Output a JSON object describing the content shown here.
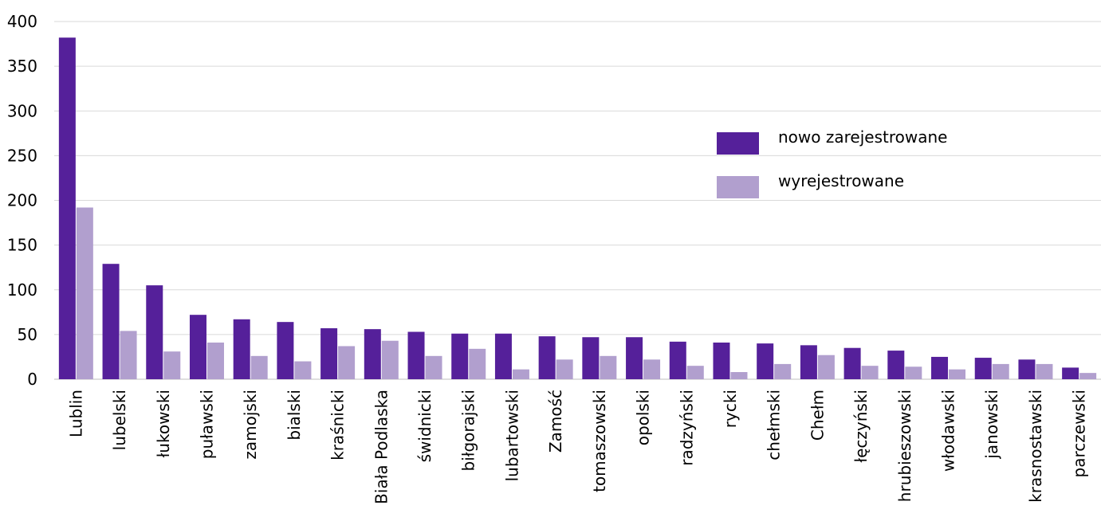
{
  "chart_data": {
    "type": "bar",
    "categories": [
      "Lublin",
      "lubelski",
      "łukowski",
      "puławski",
      "zamojski",
      "bialski",
      "kraśnicki",
      "Biała Podlaska",
      "świdnicki",
      "biłgorajski",
      "lubartowski",
      "Zamość",
      "tomaszowski",
      "opolski",
      "radzyński",
      "rycki",
      "chełmski",
      "Chełm",
      "łęczyński",
      "hrubieszowski",
      "włodawski",
      "janowski",
      "krasnostawski",
      "parczewski"
    ],
    "series": [
      {
        "name": "nowo zarejestrowane",
        "color": "#55209a",
        "values": [
          382,
          129,
          105,
          72,
          67,
          64,
          57,
          56,
          53,
          51,
          51,
          48,
          47,
          47,
          42,
          41,
          40,
          38,
          35,
          32,
          25,
          24,
          22,
          13
        ]
      },
      {
        "name": "wyrejestrowane",
        "color": "#b19fce",
        "values": [
          192,
          54,
          31,
          41,
          26,
          20,
          37,
          43,
          26,
          34,
          11,
          22,
          26,
          22,
          15,
          8,
          17,
          27,
          15,
          14,
          11,
          17,
          17,
          7
        ]
      }
    ],
    "ylim": [
      0,
      400
    ],
    "yticks": [
      0,
      50,
      100,
      150,
      200,
      250,
      300,
      350,
      400
    ],
    "grid": true,
    "legend_position": "right"
  }
}
